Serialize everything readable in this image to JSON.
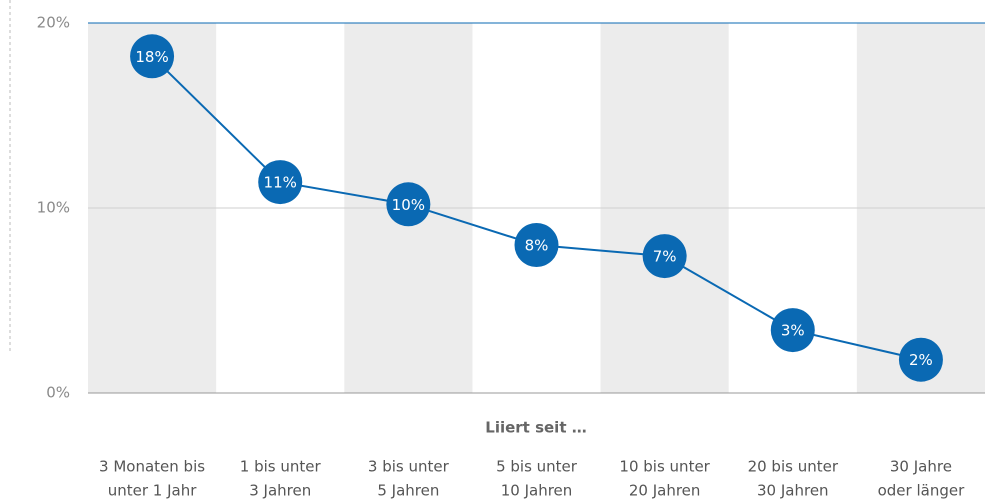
{
  "chart_data": {
    "type": "line",
    "color": "#0a69b3",
    "xlabel": "Liiert seit …",
    "categories": [
      [
        "3 Monaten bis",
        "unter 1 Jahr"
      ],
      [
        "1 bis unter",
        "3 Jahren"
      ],
      [
        "3 bis unter",
        "5 Jahren"
      ],
      [
        "5 bis unter",
        "10 Jahren"
      ],
      [
        "10 bis unter",
        "20 Jahren"
      ],
      [
        "20 bis unter",
        "30 Jahren"
      ],
      [
        "30 Jahre",
        "oder länger"
      ]
    ],
    "values": [
      18.2,
      11.4,
      10.2,
      8.0,
      7.4,
      3.4,
      1.8
    ],
    "value_labels": [
      "18%",
      "11%",
      "10%",
      "8%",
      "7%",
      "3%",
      "2%"
    ],
    "ylim": [
      0,
      20
    ],
    "yticks": [
      {
        "value": 0,
        "label": "0%"
      },
      {
        "value": 10,
        "label": "10%"
      },
      {
        "value": 20,
        "label": "20%"
      }
    ],
    "grid": true
  }
}
